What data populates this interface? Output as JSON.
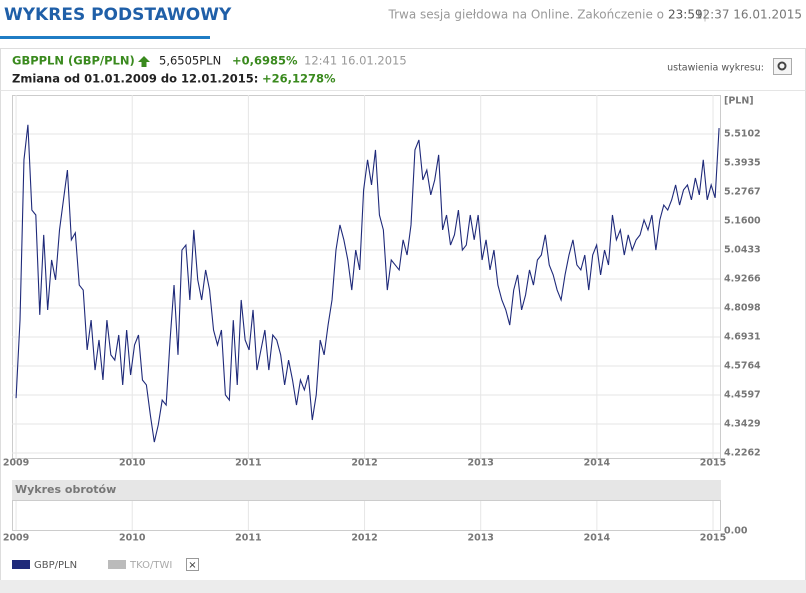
{
  "header": {
    "title": "WYKRES PODSTAWOWY",
    "session": "Trwa sesja giełdowa na Online. Zakończenie o",
    "session_end": "23:59",
    "datetime": "12:37 16.01.2015"
  },
  "info": {
    "symbol": "GBPPLN (GBP/PLN)",
    "price": "5,6505PLN",
    "change": "+0,6985%",
    "time": "12:41 16.01.2015",
    "range_label": "Zmiana od 01.01.2009 do 12.01.2015:",
    "range_change": "+26,1278%",
    "settings": "ustawienia wykresu:"
  },
  "chart_data": {
    "type": "line",
    "y_unit": "[PLN]",
    "grid": true,
    "x": [
      2009,
      2009.034,
      2009.068,
      2009.102,
      2009.136,
      2009.17,
      2009.204,
      2009.238,
      2009.272,
      2009.306,
      2009.34,
      2009.374,
      2009.408,
      2009.442,
      2009.476,
      2009.51,
      2009.544,
      2009.578,
      2009.612,
      2009.646,
      2009.68,
      2009.714,
      2009.748,
      2009.782,
      2009.816,
      2009.85,
      2009.884,
      2009.918,
      2009.952,
      2009.986,
      2010.02,
      2010.054,
      2010.088,
      2010.122,
      2010.156,
      2010.19,
      2010.224,
      2010.258,
      2010.292,
      2010.326,
      2010.36,
      2010.394,
      2010.428,
      2010.462,
      2010.496,
      2010.53,
      2010.564,
      2010.598,
      2010.632,
      2010.666,
      2010.7,
      2010.734,
      2010.768,
      2010.802,
      2010.836,
      2010.87,
      2010.904,
      2010.938,
      2010.972,
      2011.006,
      2011.04,
      2011.074,
      2011.108,
      2011.142,
      2011.176,
      2011.21,
      2011.244,
      2011.278,
      2011.312,
      2011.346,
      2011.38,
      2011.414,
      2011.448,
      2011.482,
      2011.516,
      2011.55,
      2011.584,
      2011.618,
      2011.652,
      2011.686,
      2011.72,
      2011.754,
      2011.788,
      2011.822,
      2011.856,
      2011.89,
      2011.924,
      2011.958,
      2011.992,
      2012.026,
      2012.06,
      2012.094,
      2012.128,
      2012.162,
      2012.196,
      2012.23,
      2012.264,
      2012.298,
      2012.332,
      2012.366,
      2012.4,
      2012.434,
      2012.468,
      2012.502,
      2012.536,
      2012.57,
      2012.604,
      2012.638,
      2012.672,
      2012.706,
      2012.74,
      2012.774,
      2012.808,
      2012.842,
      2012.876,
      2012.91,
      2012.944,
      2012.978,
      2013.012,
      2013.046,
      2013.08,
      2013.114,
      2013.148,
      2013.182,
      2013.216,
      2013.25,
      2013.284,
      2013.318,
      2013.352,
      2013.386,
      2013.42,
      2013.454,
      2013.488,
      2013.522,
      2013.556,
      2013.59,
      2013.624,
      2013.658,
      2013.692,
      2013.726,
      2013.76,
      2013.794,
      2013.828,
      2013.862,
      2013.896,
      2013.93,
      2013.964,
      2013.998,
      2014.032,
      2014.066,
      2014.1,
      2014.134,
      2014.168,
      2014.202,
      2014.236,
      2014.27,
      2014.304,
      2014.338,
      2014.372,
      2014.406,
      2014.44,
      2014.474,
      2014.508,
      2014.542,
      2014.576,
      2014.61,
      2014.644,
      2014.678,
      2014.712,
      2014.746,
      2014.78,
      2014.814,
      2014.848,
      2014.882,
      2014.916,
      2014.95,
      2014.984,
      2015.018,
      2015.052
    ],
    "series": [
      {
        "name": "GBP/PLN",
        "color": "#1f2a7a",
        "values": [
          4.447,
          4.761,
          5.406,
          5.547,
          5.204,
          5.184,
          4.782,
          5.104,
          4.802,
          5.003,
          4.923,
          5.124,
          5.245,
          5.365,
          5.084,
          5.112,
          4.902,
          4.882,
          4.641,
          4.761,
          4.56,
          4.681,
          4.52,
          4.761,
          4.621,
          4.6,
          4.701,
          4.5,
          4.721,
          4.54,
          4.661,
          4.701,
          4.52,
          4.5,
          4.379,
          4.27,
          4.339,
          4.439,
          4.419,
          4.681,
          4.902,
          4.621,
          5.043,
          5.063,
          4.842,
          5.124,
          4.923,
          4.842,
          4.963,
          4.882,
          4.721,
          4.661,
          4.721,
          4.46,
          4.439,
          4.761,
          4.5,
          4.842,
          4.681,
          4.641,
          4.802,
          4.56,
          4.641,
          4.721,
          4.56,
          4.701,
          4.681,
          4.621,
          4.5,
          4.6,
          4.52,
          4.419,
          4.52,
          4.48,
          4.54,
          4.359,
          4.46,
          4.681,
          4.621,
          4.741,
          4.842,
          5.043,
          5.144,
          5.084,
          5.003,
          4.882,
          5.043,
          4.963,
          5.285,
          5.406,
          5.305,
          5.446,
          5.184,
          5.124,
          4.882,
          5.003,
          4.983,
          4.963,
          5.084,
          5.023,
          5.144,
          5.446,
          5.486,
          5.325,
          5.365,
          5.265,
          5.325,
          5.426,
          5.124,
          5.184,
          5.063,
          5.104,
          5.204,
          5.043,
          5.063,
          5.184,
          5.084,
          5.184,
          5.003,
          5.084,
          4.963,
          5.043,
          4.902,
          4.842,
          4.802,
          4.741,
          4.882,
          4.943,
          4.802,
          4.862,
          4.963,
          4.902,
          5.003,
          5.023,
          5.104,
          4.983,
          4.943,
          4.882,
          4.842,
          4.943,
          5.023,
          5.084,
          4.983,
          4.963,
          5.023,
          4.882,
          5.023,
          5.063,
          4.943,
          5.043,
          4.983,
          5.184,
          5.084,
          5.124,
          5.023,
          5.104,
          5.043,
          5.084,
          5.104,
          5.164,
          5.124,
          5.184,
          5.043,
          5.164,
          5.224,
          5.204,
          5.245,
          5.305,
          5.224,
          5.285,
          5.305,
          5.245,
          5.333,
          5.265,
          5.406,
          5.245,
          5.305,
          5.253,
          5.534
        ]
      }
    ],
    "xlim": [
      2008.965,
      2015.06
    ],
    "xticks": [
      2009,
      2010,
      2011,
      2012,
      2013,
      2014,
      2015
    ],
    "ylim": [
      4.206,
      5.667
    ],
    "yticks": [
      4.2262,
      4.3429,
      4.4597,
      4.5764,
      4.6931,
      4.8098,
      4.9266,
      5.0433,
      {
        "value": 5.16,
        "label": "5.1600"
      },
      5.2767,
      5.3935,
      5.5102
    ]
  },
  "turnover": {
    "title": "Wykres obrotów",
    "yticks": [
      {
        "value": 0,
        "label": "0.00"
      }
    ]
  },
  "legend": {
    "other": "TKO/TWI",
    "close": "×"
  }
}
